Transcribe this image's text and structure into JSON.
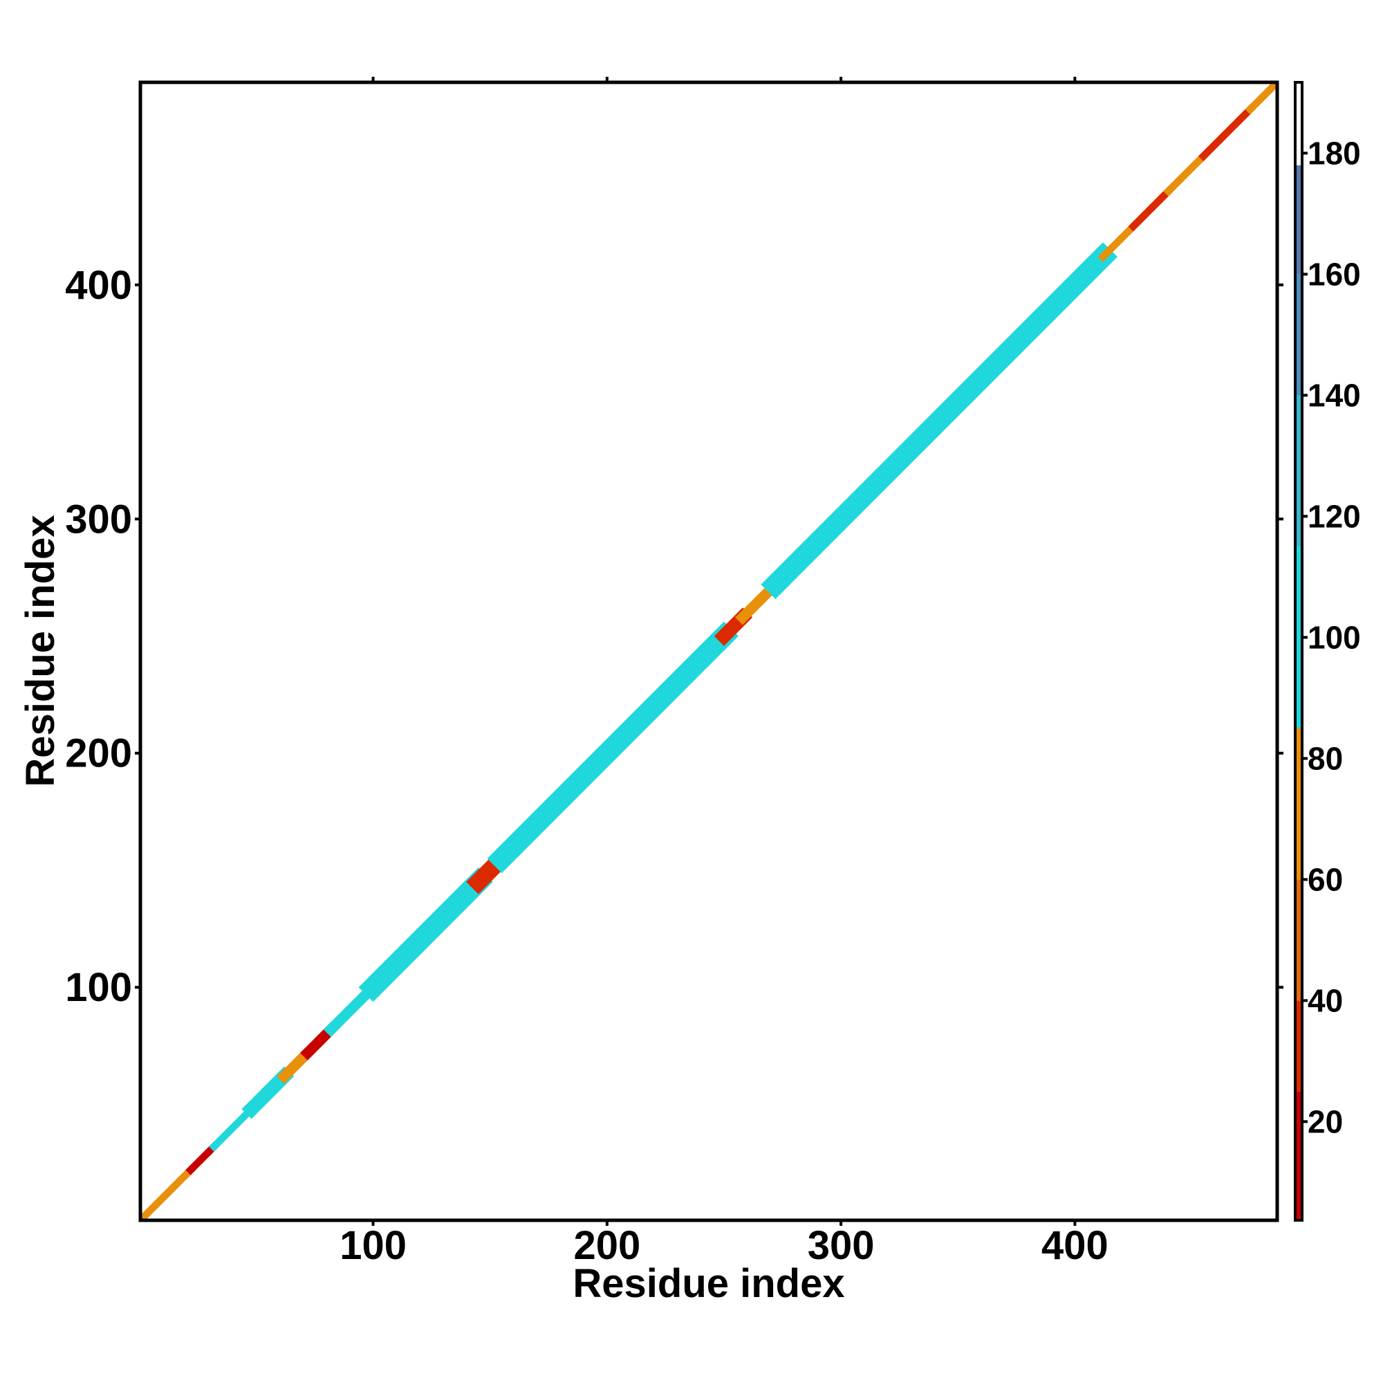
{
  "chart_data": {
    "type": "diagonal-map",
    "xlabel": "Residue index",
    "ylabel": "Residue index",
    "xlim": [
      0.5,
      486.5
    ],
    "ylim": [
      0.5,
      486.5
    ],
    "xticks": [
      100,
      200,
      300,
      400
    ],
    "yticks": [
      100,
      200,
      300,
      400
    ],
    "clim": [
      3.7,
      191.7
    ],
    "cticks": [
      20,
      40,
      60,
      80,
      100,
      120,
      140,
      160,
      180
    ],
    "colorscale": [
      {
        "value": 3.7,
        "color": "#c80000"
      },
      {
        "value": 25,
        "color": "#dc2a00"
      },
      {
        "value": 40,
        "color": "#e06a10"
      },
      {
        "value": 60,
        "color": "#e8900a"
      },
      {
        "value": 85,
        "color": "#20d8dc"
      },
      {
        "value": 115,
        "color": "#3ab8cc"
      },
      {
        "value": 140,
        "color": "#4a90c0"
      },
      {
        "value": 160,
        "color": "#5a78b0"
      },
      {
        "value": 178,
        "color": "#ffffff"
      }
    ],
    "segments": [
      {
        "start": 1,
        "end": 22,
        "value": 70,
        "halfwidth": 2
      },
      {
        "start": 22,
        "end": 32,
        "value": 20,
        "halfwidth": 2
      },
      {
        "start": 32,
        "end": 48,
        "value": 110,
        "halfwidth": 2
      },
      {
        "start": 48,
        "end": 62,
        "value": 95,
        "halfwidth": 4
      },
      {
        "start": 62,
        "end": 72,
        "value": 60,
        "halfwidth": 3
      },
      {
        "start": 72,
        "end": 82,
        "value": 20,
        "halfwidth": 3
      },
      {
        "start": 82,
        "end": 100,
        "value": 95,
        "halfwidth": 3
      },
      {
        "start": 100,
        "end": 145,
        "value": 110,
        "halfwidth": 6
      },
      {
        "start": 145,
        "end": 155,
        "value": 25,
        "halfwidth": 5
      },
      {
        "start": 155,
        "end": 250,
        "value": 105,
        "halfwidth": 6
      },
      {
        "start": 250,
        "end": 258,
        "value": 25,
        "halfwidth": 4
      },
      {
        "start": 258,
        "end": 272,
        "value": 70,
        "halfwidth": 3
      },
      {
        "start": 272,
        "end": 412,
        "value": 105,
        "halfwidth": 6
      },
      {
        "start": 412,
        "end": 425,
        "value": 70,
        "halfwidth": 2
      },
      {
        "start": 425,
        "end": 440,
        "value": 25,
        "halfwidth": 2
      },
      {
        "start": 440,
        "end": 455,
        "value": 70,
        "halfwidth": 2
      },
      {
        "start": 455,
        "end": 475,
        "value": 25,
        "halfwidth": 2
      },
      {
        "start": 475,
        "end": 486,
        "value": 70,
        "halfwidth": 2
      }
    ]
  }
}
